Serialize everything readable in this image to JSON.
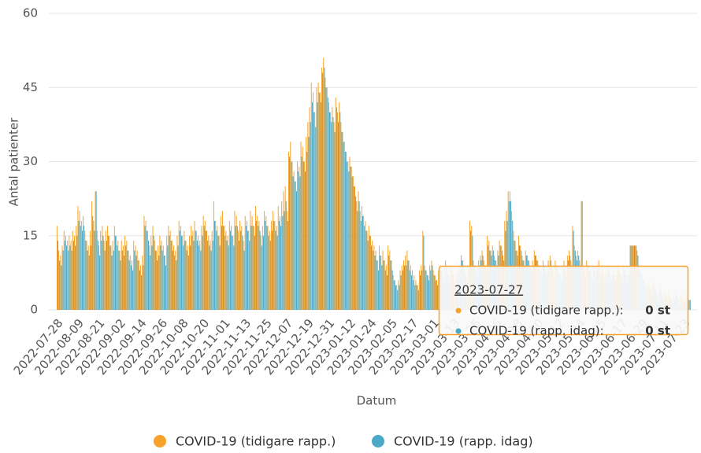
{
  "chart_data": {
    "type": "bar",
    "ylabel": "Antal patienter",
    "xlabel": "Datum",
    "ylim": [
      0,
      60
    ],
    "yticks": [
      0,
      15,
      30,
      45,
      60
    ],
    "grid": true,
    "legend": "bottom",
    "categories": [
      "2022-07-28",
      null,
      null,
      null,
      null,
      null,
      null,
      null,
      null,
      null,
      null,
      null,
      "2022-08-09",
      null,
      null,
      null,
      null,
      null,
      null,
      null,
      null,
      null,
      null,
      null,
      "2022-08-21",
      null,
      null,
      null,
      null,
      null,
      null,
      null,
      null,
      null,
      null,
      null,
      "2022-09-02",
      null,
      null,
      null,
      null,
      null,
      null,
      null,
      null,
      null,
      null,
      null,
      "2022-09-14",
      null,
      null,
      null,
      null,
      null,
      null,
      null,
      null,
      null,
      null,
      null,
      "2022-09-26",
      null,
      null,
      null,
      null,
      null,
      null,
      null,
      null,
      null,
      null,
      null,
      "2022-10-08",
      null,
      null,
      null,
      null,
      null,
      null,
      null,
      null,
      null,
      null,
      null,
      "2022-10-20",
      null,
      null,
      null,
      null,
      null,
      null,
      null,
      null,
      null,
      null,
      null,
      "2022-11-01",
      null,
      null,
      null,
      null,
      null,
      null,
      null,
      null,
      null,
      null,
      null,
      "2022-11-13",
      null,
      null,
      null,
      null,
      null,
      null,
      null,
      null,
      null,
      null,
      null,
      "2022-11-25",
      null,
      null,
      null,
      null,
      null,
      null,
      null,
      null,
      null,
      null,
      null,
      "2022-12-07",
      null,
      null,
      null,
      null,
      null,
      null,
      null,
      null,
      null,
      null,
      null,
      "2022-12-19",
      null,
      null,
      null,
      null,
      null,
      null,
      null,
      null,
      null,
      null,
      null,
      "2022-12-31",
      null,
      null,
      null,
      null,
      null,
      null,
      null,
      null,
      null,
      null,
      null,
      "2023-01-12",
      null,
      null,
      null,
      null,
      null,
      null,
      null,
      null,
      null,
      null,
      null,
      "2023-01-24",
      null,
      null,
      null,
      null,
      null,
      null,
      null,
      null,
      null,
      null,
      null,
      "2023-02-05",
      null,
      null,
      null,
      null,
      null,
      null,
      null,
      null,
      null,
      null,
      null,
      "2023-02-17",
      null,
      null,
      null,
      null,
      null,
      null,
      null,
      null,
      null,
      null,
      null,
      "2023-03-01",
      null,
      null,
      null,
      null,
      null,
      null,
      null,
      null,
      null,
      null,
      null,
      "2023-03-13",
      null,
      null,
      null,
      null,
      null,
      null,
      null,
      null,
      null,
      null,
      null,
      "2023-03-25",
      null,
      null,
      null,
      null,
      null,
      null,
      null,
      null,
      null,
      null,
      null,
      "2023-04-06",
      null,
      null,
      null,
      null,
      null,
      null,
      null,
      null,
      null,
      null,
      null,
      "2023-04-18",
      null,
      null,
      null,
      null,
      null,
      null,
      null,
      null,
      null,
      null,
      null,
      "2023-04-30",
      null,
      null,
      null,
      null,
      null,
      null,
      null,
      null,
      null,
      null,
      null,
      "2023-05-12",
      null,
      null,
      null,
      null,
      null,
      null,
      null,
      null,
      null,
      null,
      null,
      "2023-05-24",
      null,
      null,
      null,
      null,
      null,
      null,
      null,
      null,
      null,
      null,
      null,
      "2023-06-05",
      null,
      null,
      null,
      null,
      null,
      null,
      null,
      null,
      null,
      null,
      null,
      "2023-06-17",
      null,
      null,
      null,
      null,
      null,
      null,
      null,
      null,
      null,
      null,
      null,
      "2023-06-29",
      null,
      null,
      null,
      null,
      null,
      null,
      null,
      null,
      null,
      null,
      null,
      "2023-07-11",
      null,
      null,
      null,
      null,
      null,
      null,
      null,
      null,
      null,
      null,
      null,
      "2023-07-23",
      null,
      null,
      null,
      null
    ],
    "series": [
      {
        "name": "COVID-19 (tidigare rapp.)",
        "color": "#f7a32b",
        "values": [
          17,
          12,
          11,
          13,
          16,
          15,
          14,
          15,
          14,
          16,
          15,
          17,
          21,
          20,
          18,
          19,
          16,
          14,
          13,
          16,
          22,
          18,
          24,
          16,
          13,
          16,
          17,
          14,
          16,
          17,
          15,
          13,
          14,
          17,
          15,
          14,
          12,
          14,
          13,
          15,
          14,
          12,
          11,
          10,
          14,
          13,
          12,
          10,
          9,
          11,
          19,
          18,
          16,
          13,
          15,
          17,
          14,
          12,
          13,
          15,
          14,
          13,
          11,
          15,
          17,
          16,
          14,
          13,
          12,
          15,
          18,
          17,
          15,
          16,
          14,
          13,
          15,
          17,
          16,
          18,
          16,
          15,
          14,
          17,
          19,
          18,
          16,
          15,
          14,
          16,
          22,
          18,
          17,
          15,
          19,
          20,
          17,
          16,
          15,
          18,
          17,
          15,
          20,
          19,
          16,
          18,
          17,
          14,
          19,
          18,
          16,
          20,
          19,
          17,
          21,
          19,
          18,
          15,
          17,
          20,
          19,
          17,
          16,
          18,
          20,
          18,
          17,
          21,
          19,
          22,
          24,
          25,
          20,
          32,
          34,
          30,
          28,
          26,
          30,
          29,
          34,
          33,
          30,
          35,
          38,
          41,
          46,
          44,
          40,
          45,
          46,
          44,
          49,
          51,
          47,
          45,
          42,
          40,
          41,
          38,
          43,
          40,
          42,
          38,
          36,
          34,
          32,
          30,
          31,
          29,
          27,
          25,
          22,
          24,
          20,
          21,
          19,
          18,
          16,
          17,
          15,
          14,
          13,
          12,
          10,
          13,
          11,
          12,
          10,
          9,
          13,
          12,
          10,
          7,
          6,
          5,
          6,
          8,
          9,
          10,
          11,
          12,
          10,
          9,
          8,
          7,
          6,
          5,
          8,
          9,
          16,
          9,
          8,
          7,
          9,
          10,
          8,
          7,
          6,
          8,
          9,
          8,
          7,
          10,
          8,
          7,
          9,
          8,
          6,
          7,
          8,
          9,
          11,
          10,
          8,
          7,
          9,
          18,
          17,
          10,
          9,
          8,
          10,
          11,
          12,
          10,
          9,
          15,
          14,
          12,
          13,
          11,
          10,
          12,
          14,
          13,
          11,
          18,
          20,
          24,
          24,
          20,
          16,
          14,
          12,
          15,
          13,
          11,
          10,
          12,
          11,
          10,
          9,
          10,
          12,
          11,
          10,
          9,
          8,
          10,
          9,
          8,
          10,
          11,
          9,
          8,
          10,
          9,
          8,
          7,
          9,
          10,
          8,
          11,
          12,
          10,
          17,
          13,
          11,
          12,
          10,
          22,
          9,
          8,
          10,
          9,
          8,
          7,
          9,
          8,
          9,
          10,
          8,
          9,
          7,
          8,
          9,
          8,
          7,
          8,
          7,
          8,
          9,
          8,
          7,
          9,
          8,
          7,
          8,
          13,
          13,
          13,
          13,
          12,
          9,
          8,
          7,
          6,
          5,
          6,
          5,
          4,
          6,
          5,
          4,
          3,
          5,
          4,
          3,
          4,
          3,
          4,
          3,
          2,
          3,
          4,
          3,
          2,
          3,
          3,
          2,
          3,
          2,
          2,
          0
        ]
      },
      {
        "name": "COVID-19 (rapp. idag)",
        "color": "#4ba8c6",
        "values": [
          14,
          10,
          9,
          12,
          14,
          13,
          12,
          13,
          12,
          14,
          13,
          15,
          18,
          17,
          16,
          17,
          14,
          12,
          11,
          13,
          19,
          16,
          24,
          14,
          11,
          14,
          15,
          12,
          14,
          15,
          13,
          11,
          12,
          15,
          13,
          12,
          10,
          12,
          11,
          13,
          12,
          10,
          9,
          8,
          12,
          11,
          10,
          8,
          7,
          9,
          17,
          16,
          14,
          11,
          13,
          15,
          12,
          10,
          11,
          13,
          12,
          11,
          9,
          13,
          15,
          14,
          12,
          11,
          10,
          13,
          16,
          15,
          13,
          14,
          12,
          11,
          13,
          15,
          14,
          16,
          14,
          13,
          12,
          15,
          17,
          16,
          14,
          13,
          12,
          14,
          18,
          16,
          15,
          13,
          17,
          17,
          15,
          14,
          13,
          16,
          15,
          13,
          17,
          17,
          14,
          16,
          15,
          12,
          17,
          16,
          14,
          17,
          17,
          15,
          18,
          17,
          16,
          13,
          15,
          18,
          17,
          15,
          14,
          16,
          18,
          16,
          15,
          18,
          17,
          19,
          20,
          22,
          18,
          31,
          30,
          27,
          26,
          24,
          28,
          27,
          31,
          30,
          28,
          32,
          35,
          38,
          42,
          40,
          37,
          42,
          44,
          42,
          48,
          49,
          45,
          43,
          40,
          38,
          39,
          36,
          41,
          38,
          40,
          36,
          34,
          32,
          30,
          28,
          29,
          27,
          25,
          23,
          20,
          22,
          18,
          19,
          17,
          16,
          14,
          15,
          13,
          12,
          11,
          10,
          8,
          11,
          9,
          10,
          8,
          7,
          11,
          10,
          8,
          6,
          5,
          4,
          5,
          7,
          8,
          9,
          9,
          10,
          8,
          7,
          6,
          5,
          5,
          4,
          7,
          8,
          15,
          8,
          7,
          6,
          8,
          9,
          7,
          6,
          5,
          7,
          8,
          7,
          6,
          9,
          7,
          6,
          8,
          7,
          5,
          6,
          7,
          8,
          10,
          9,
          7,
          6,
          8,
          16,
          15,
          9,
          8,
          7,
          9,
          10,
          11,
          9,
          8,
          13,
          12,
          11,
          12,
          10,
          9,
          11,
          13,
          12,
          10,
          16,
          18,
          22,
          22,
          18,
          14,
          12,
          11,
          13,
          12,
          10,
          9,
          11,
          10,
          9,
          8,
          9,
          11,
          10,
          9,
          8,
          7,
          9,
          8,
          7,
          9,
          10,
          8,
          7,
          9,
          8,
          7,
          6,
          8,
          9,
          7,
          10,
          11,
          9,
          16,
          12,
          10,
          11,
          9,
          22,
          8,
          7,
          9,
          8,
          7,
          6,
          8,
          7,
          8,
          9,
          7,
          8,
          6,
          7,
          8,
          7,
          6,
          7,
          6,
          7,
          8,
          7,
          6,
          8,
          7,
          6,
          7,
          13,
          13,
          13,
          13,
          11,
          8,
          7,
          6,
          5,
          4,
          5,
          4,
          3,
          5,
          4,
          3,
          2,
          4,
          3,
          2,
          3,
          2,
          3,
          2,
          1,
          2,
          3,
          2,
          1,
          2,
          2,
          1,
          2,
          2,
          2,
          0
        ]
      }
    ],
    "tooltip": {
      "date": "2023-07-27",
      "rows": [
        {
          "name": "COVID-19 (tidigare rapp.):",
          "value": "0 st"
        },
        {
          "name": "COVID-19 (rapp. idag):",
          "value": "0 st"
        }
      ]
    }
  }
}
